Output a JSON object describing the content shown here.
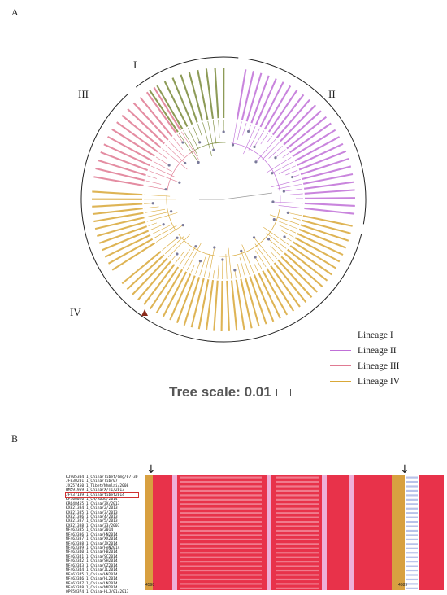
{
  "panel_a": {
    "label": "A",
    "lineage_labels": {
      "i": "I",
      "ii": "II",
      "iii": "III",
      "iv": "IV"
    },
    "legend": [
      {
        "label": "Lineage I",
        "color": "#7a8a3a"
      },
      {
        "label": "Lineage II",
        "color": "#c070d8"
      },
      {
        "label": "Lineage III",
        "color": "#e07a92"
      },
      {
        "label": "Lineage IV",
        "color": "#d9a838"
      }
    ],
    "tree_scale": "Tree scale: 0.01"
  },
  "panel_b": {
    "label": "B",
    "sequences": [
      "KJ905304.1_China/Tibet/Gmg/07-30",
      "JF830201.1_China/Tib/07",
      "JX257450.1_Tibet/Nhmlai/2008",
      "HM591959.1_China/X/T1/2013",
      "JF937139.1_China/tibet2014",
      "KF300026.1_CH/XDGG/2014",
      "KR648455.1_China/3X/2013",
      "KX821384.1_China/2/2013",
      "KX821385.1_China/3/2013",
      "KX821386.1_China/4/2013",
      "KX821387.1_China/5/2013",
      "KX821388.1_China/33/2007",
      "MF463335.1_China/2014",
      "MF463336.1_China/HN2014",
      "MF463337.1_China/XX2014",
      "MF463338.1_China/JX2014",
      "MF463339.1_China/HeN2014",
      "MF463340.1_China/HB2014",
      "MF463341.1_China/SC2014",
      "MF463342.1_China/SH2014",
      "MF463343.1_China/GZ2014",
      "MF463344.1_China/JL2014",
      "MF463345.1_China/HN2014",
      "MF463346.1_China/HL2014",
      "MF463347.1_China/LN2014",
      "MF463348.1_China/NM2014",
      "OP958374.1_China-HLJ/01/2013"
    ],
    "highlighted_sequence_index": 4,
    "arrow_glyph": "↓",
    "position_start": "4598",
    "position_end": "4685"
  }
}
